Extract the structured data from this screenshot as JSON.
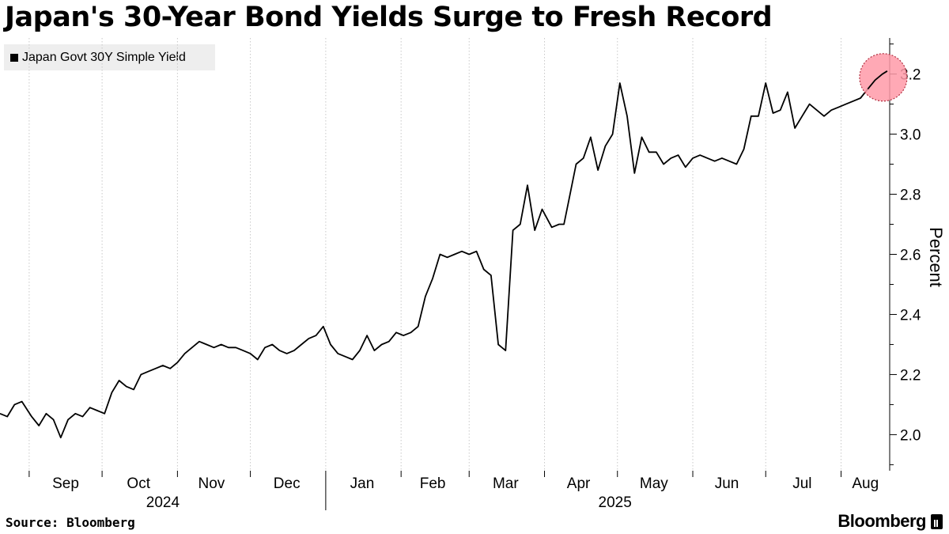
{
  "title": "Japan's 30-Year Bond Yields Surge to Fresh Record",
  "legend": {
    "label": "Japan Govt 30Y Simple Yield"
  },
  "footer": {
    "source": "Source: Bloomberg",
    "brand": "Bloomberg"
  },
  "colors": {
    "line": "#000000",
    "highlight": "#ff9aa8",
    "grid": "#c8c8c8",
    "legend_bg": "#eeeeee"
  },
  "chart_data": {
    "type": "line",
    "title": "Japan's 30-Year Bond Yields Surge to Fresh Record",
    "ylabel": "Percent",
    "ylim": [
      1.88,
      3.32
    ],
    "y_ticks": [
      2.0,
      2.2,
      2.4,
      2.6,
      2.8,
      3.0,
      3.2
    ],
    "y_tick_labels": [
      "2.0",
      "2.2",
      "2.4",
      "2.6",
      "2.8",
      "3.0",
      "3.2"
    ],
    "month_labels": [
      "Sep",
      "Oct",
      "Nov",
      "Dec",
      "Jan",
      "Feb",
      "Mar",
      "Apr",
      "May",
      "Jun",
      "Jul",
      "Aug"
    ],
    "year_labels": [
      "2024",
      "2025"
    ],
    "grid": "vertical-dotted",
    "legend_position": "top-left",
    "highlight": "latest value circled",
    "series": [
      {
        "name": "Japan Govt 30Y Simple Yield",
        "x": [
          "2024-08-20",
          "2024-08-23",
          "2024-08-26",
          "2024-08-29",
          "2024-09-02",
          "2024-09-05",
          "2024-09-08",
          "2024-09-11",
          "2024-09-14",
          "2024-09-17",
          "2024-09-20",
          "2024-09-23",
          "2024-09-26",
          "2024-09-29",
          "2024-10-02",
          "2024-10-05",
          "2024-10-08",
          "2024-10-11",
          "2024-10-14",
          "2024-10-17",
          "2024-10-20",
          "2024-10-23",
          "2024-10-26",
          "2024-10-29",
          "2024-11-01",
          "2024-11-04",
          "2024-11-07",
          "2024-11-10",
          "2024-11-13",
          "2024-11-16",
          "2024-11-19",
          "2024-11-22",
          "2024-11-25",
          "2024-11-28",
          "2024-12-01",
          "2024-12-04",
          "2024-12-07",
          "2024-12-10",
          "2024-12-13",
          "2024-12-16",
          "2024-12-19",
          "2024-12-22",
          "2024-12-25",
          "2024-12-28",
          "2024-12-31",
          "2025-01-03",
          "2025-01-06",
          "2025-01-09",
          "2025-01-12",
          "2025-01-15",
          "2025-01-18",
          "2025-01-21",
          "2025-01-24",
          "2025-01-27",
          "2025-01-30",
          "2025-02-02",
          "2025-02-05",
          "2025-02-08",
          "2025-02-11",
          "2025-02-14",
          "2025-02-17",
          "2025-02-20",
          "2025-02-23",
          "2025-02-26",
          "2025-03-01",
          "2025-03-04",
          "2025-03-07",
          "2025-03-10",
          "2025-03-13",
          "2025-03-16",
          "2025-03-19",
          "2025-03-22",
          "2025-03-25",
          "2025-03-28",
          "2025-03-31",
          "2025-04-02",
          "2025-04-04",
          "2025-04-07",
          "2025-04-09",
          "2025-04-11",
          "2025-04-14",
          "2025-04-17",
          "2025-04-20",
          "2025-04-23",
          "2025-04-26",
          "2025-04-29",
          "2025-05-02",
          "2025-05-05",
          "2025-05-08",
          "2025-05-11",
          "2025-05-14",
          "2025-05-17",
          "2025-05-20",
          "2025-05-23",
          "2025-05-26",
          "2025-05-29",
          "2025-06-01",
          "2025-06-04",
          "2025-06-07",
          "2025-06-10",
          "2025-06-13",
          "2025-06-16",
          "2025-06-19",
          "2025-06-22",
          "2025-06-25",
          "2025-06-28",
          "2025-07-01",
          "2025-07-04",
          "2025-07-07",
          "2025-07-10",
          "2025-07-13",
          "2025-07-16",
          "2025-07-19",
          "2025-07-22",
          "2025-07-25",
          "2025-07-28",
          "2025-07-31",
          "2025-08-03",
          "2025-08-06",
          "2025-08-09",
          "2025-08-12",
          "2025-08-15",
          "2025-08-18",
          "2025-08-20"
        ],
        "values": [
          2.07,
          2.06,
          2.1,
          2.11,
          2.06,
          2.03,
          2.07,
          2.05,
          1.99,
          2.05,
          2.07,
          2.06,
          2.09,
          2.08,
          2.07,
          2.14,
          2.18,
          2.16,
          2.15,
          2.2,
          2.21,
          2.22,
          2.23,
          2.22,
          2.24,
          2.27,
          2.29,
          2.31,
          2.3,
          2.29,
          2.3,
          2.29,
          2.29,
          2.28,
          2.27,
          2.25,
          2.29,
          2.3,
          2.28,
          2.27,
          2.28,
          2.3,
          2.32,
          2.33,
          2.36,
          2.3,
          2.27,
          2.26,
          2.25,
          2.28,
          2.33,
          2.28,
          2.3,
          2.31,
          2.34,
          2.33,
          2.34,
          2.36,
          2.46,
          2.52,
          2.6,
          2.59,
          2.6,
          2.61,
          2.6,
          2.61,
          2.55,
          2.53,
          2.3,
          2.28,
          2.68,
          2.7,
          2.83,
          2.68,
          2.75,
          2.72,
          2.69,
          2.7,
          2.7,
          2.78,
          2.9,
          2.92,
          2.99,
          2.88,
          2.96,
          3.0,
          3.17,
          3.06,
          2.87,
          2.99,
          2.94,
          2.94,
          2.9,
          2.92,
          2.93,
          2.89,
          2.92,
          2.93,
          2.92,
          2.91,
          2.92,
          2.91,
          2.9,
          2.95,
          3.06,
          3.06,
          3.17,
          3.07,
          3.08,
          3.14,
          3.02,
          3.06,
          3.1,
          3.08,
          3.06,
          3.08,
          3.09,
          3.1,
          3.11,
          3.12,
          3.15,
          3.18,
          3.2,
          3.21
        ]
      }
    ]
  }
}
